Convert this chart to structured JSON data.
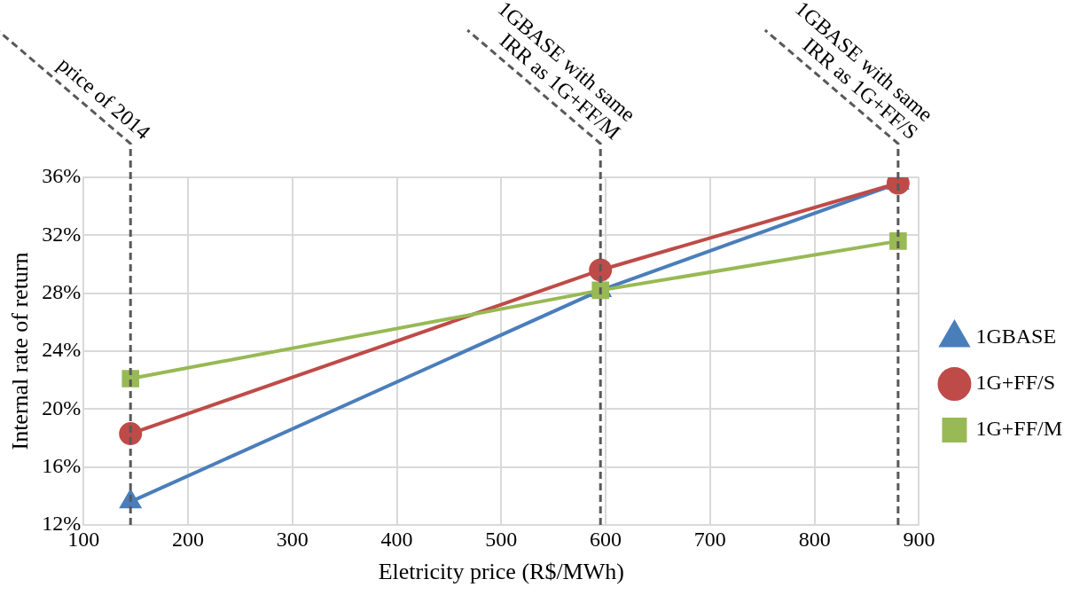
{
  "chart_data": {
    "type": "line",
    "xlabel": "Eletricity price (R$/MWh)",
    "ylabel": "Internal rate of return",
    "x": [
      145,
      595,
      880
    ],
    "series": [
      {
        "name": "1GBASE",
        "color": "#4a7ebb",
        "values": [
          13.6,
          28.2,
          35.6
        ],
        "marker": "triangle"
      },
      {
        "name": "1G+FF/S",
        "color": "#be4b48",
        "values": [
          18.3,
          29.6,
          35.6
        ],
        "marker": "circle"
      },
      {
        "name": "1G+FF/M",
        "color": "#98b954",
        "values": [
          22.1,
          28.2,
          31.6
        ],
        "marker": "square"
      }
    ],
    "xlim": [
      100,
      900
    ],
    "xticks": [
      100,
      200,
      300,
      400,
      500,
      600,
      700,
      800,
      900
    ],
    "ylim": [
      12,
      36
    ],
    "yticks": [
      {
        "value": 12,
        "label": "12%"
      },
      {
        "value": 16,
        "label": "16%"
      },
      {
        "value": 20,
        "label": "20%"
      },
      {
        "value": 24,
        "label": "24%"
      },
      {
        "value": 28,
        "label": "28%"
      },
      {
        "value": 32,
        "label": "32%"
      },
      {
        "value": 36,
        "label": "36%"
      }
    ],
    "ref_lines": [
      {
        "axis": "x",
        "value": 145,
        "label": "price of 2014",
        "color": "#595959",
        "line_style": "dashed"
      },
      {
        "axis": "x",
        "value": 595,
        "label": "1GBASE with same IRR as 1G+FF/M",
        "color": "#595959",
        "line_style": "dashed"
      },
      {
        "axis": "x",
        "value": 880,
        "label": "1GBASE with same IRR as 1G+FF/S",
        "color": "#595959",
        "line_style": "dashed"
      }
    ],
    "grid": true,
    "legend": "right",
    "line_style": "solid"
  }
}
